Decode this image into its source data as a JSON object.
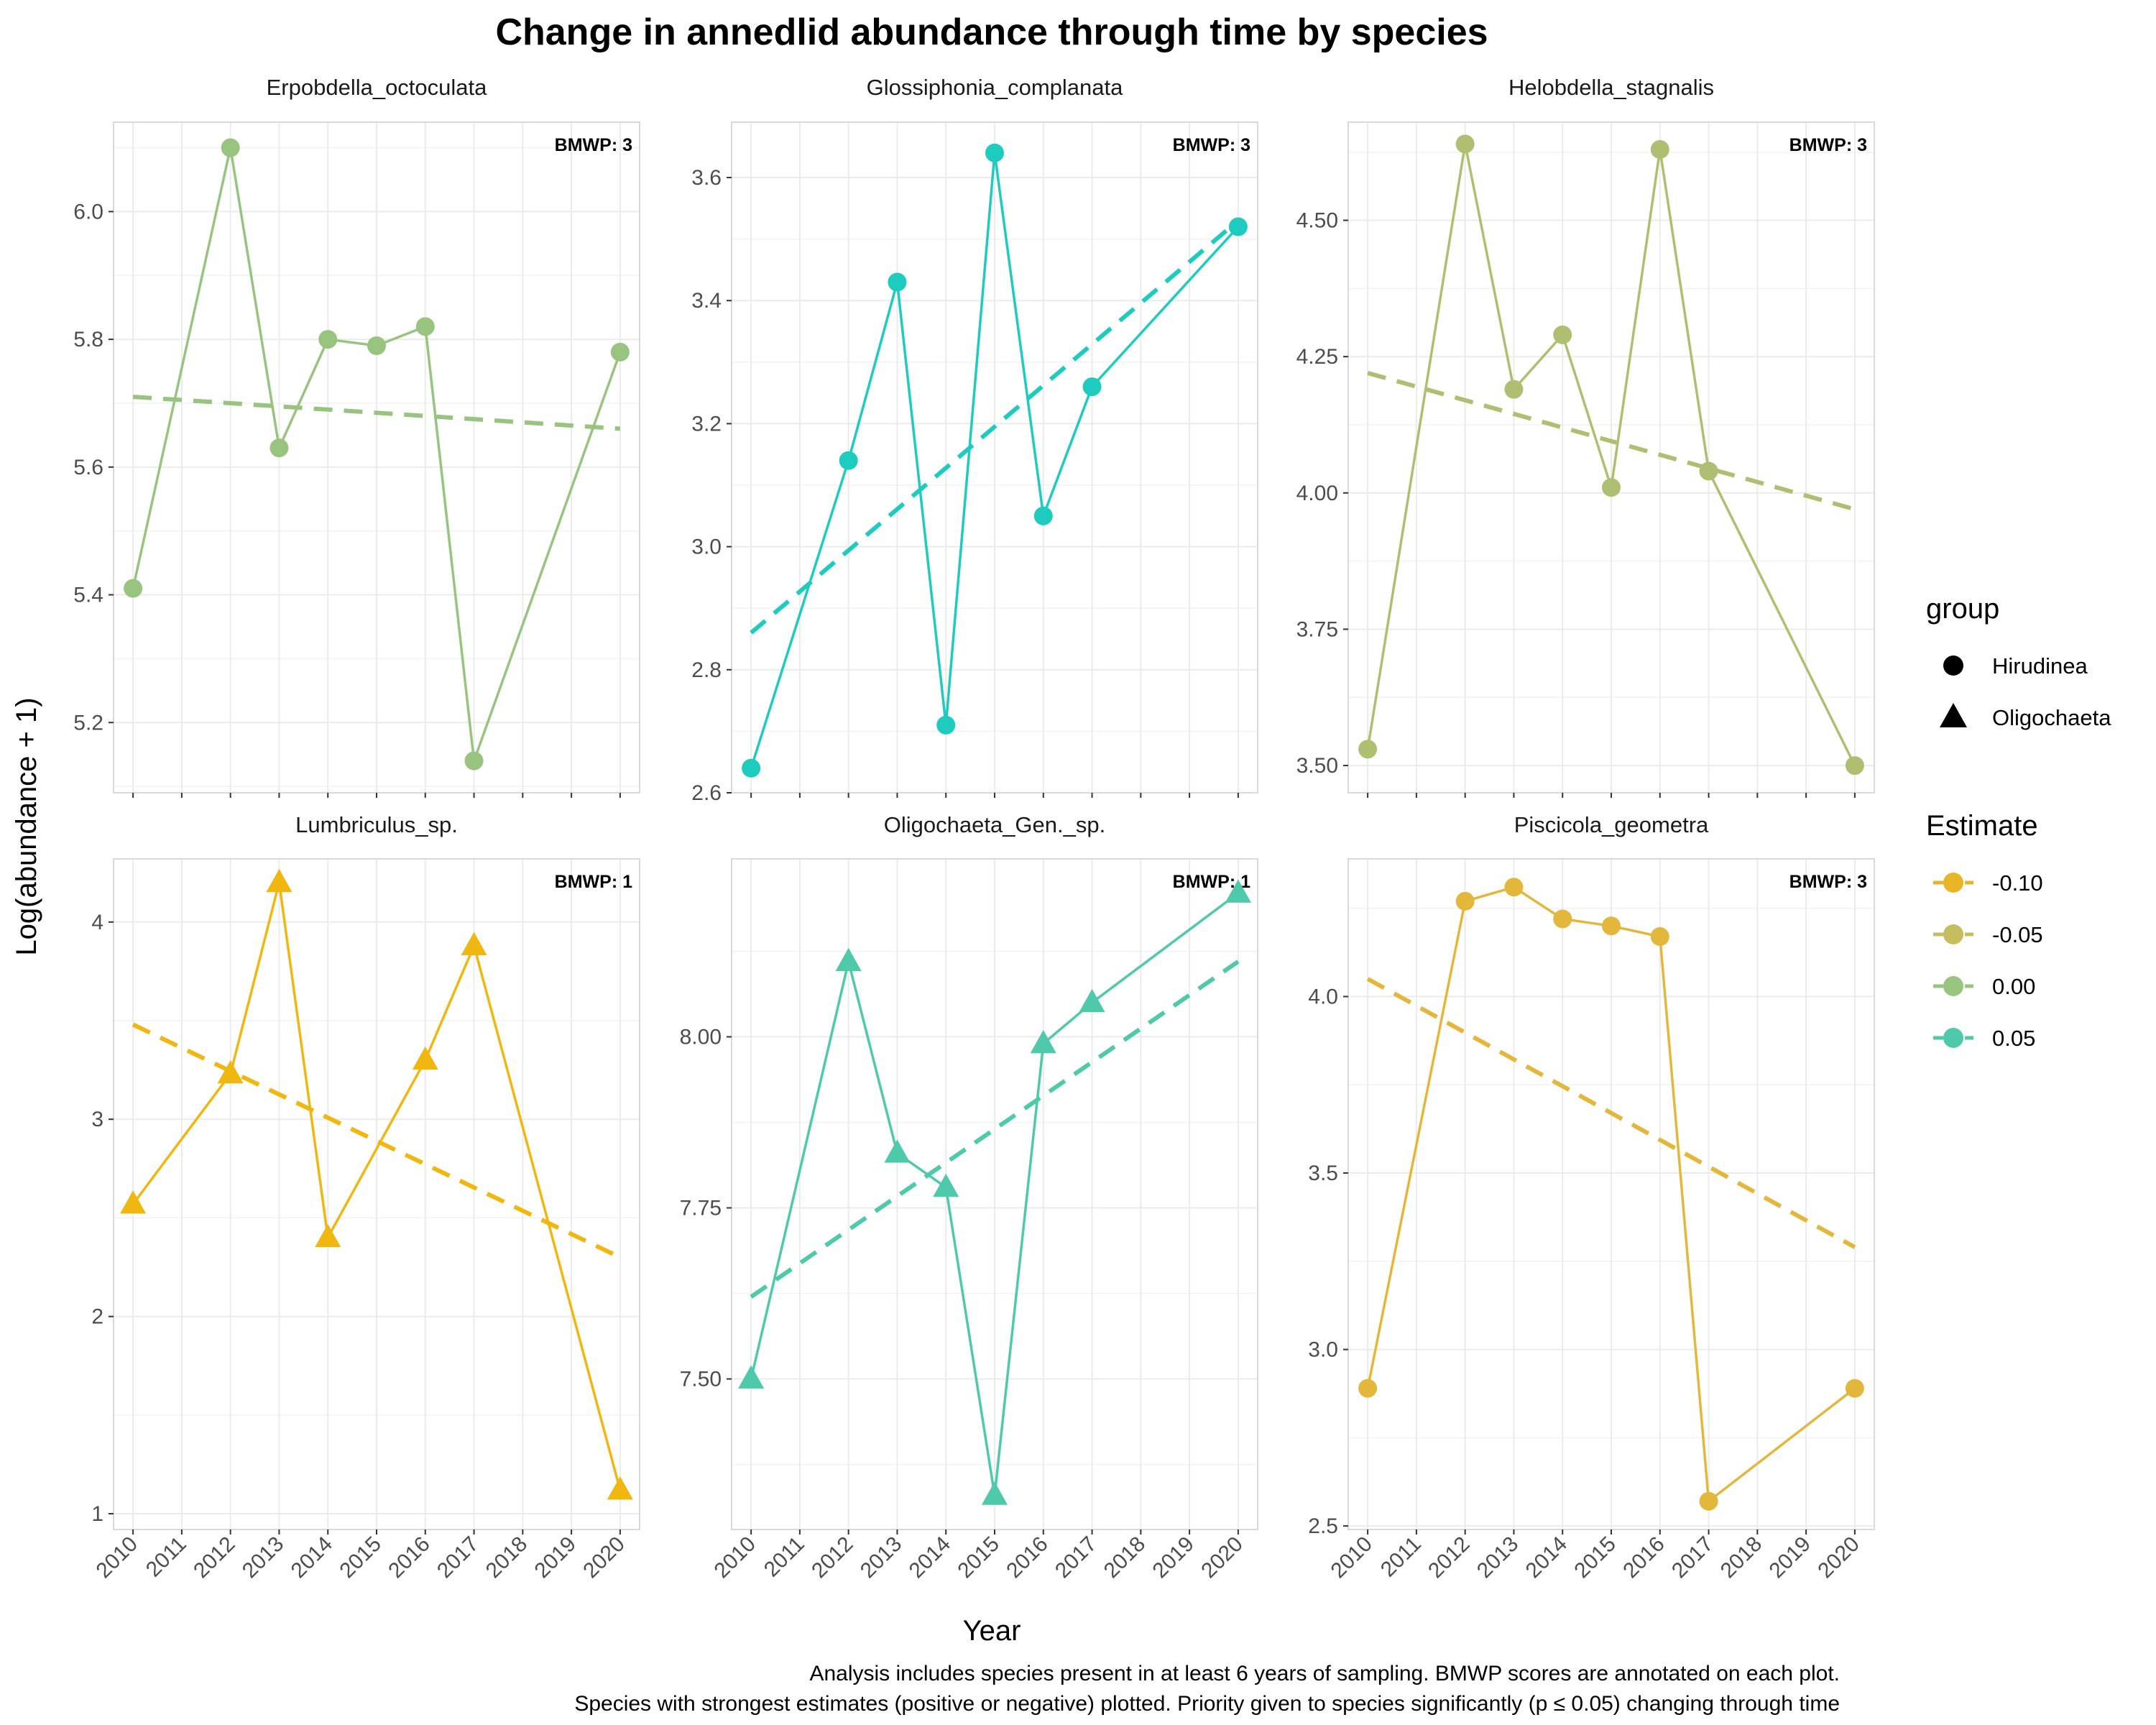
{
  "title": "Change in annedlid abundance through time by species",
  "xlabel": "Year",
  "ylabel": "Log(abundance + 1)",
  "caption": [
    "Analysis includes species present in at least 6 years of sampling. BMWP scores are annotated on each plot.",
    "Species with strongest estimates (positive or negative) plotted. Priority given to species significantly (p ≤ 0.05) changing through time"
  ],
  "legend": {
    "group": {
      "title": "group",
      "items": [
        {
          "label": "Hirudinea",
          "shape": "circle"
        },
        {
          "label": "Oligochaeta",
          "shape": "triangle"
        }
      ]
    },
    "estimate": {
      "title": "Estimate",
      "items": [
        {
          "label": "-0.10",
          "color": "#e7b526"
        },
        {
          "label": "-0.05",
          "color": "#c4be5f"
        },
        {
          "label": "0.00",
          "color": "#98c480"
        },
        {
          "label": "0.05",
          "color": "#4ec9aa"
        }
      ]
    }
  },
  "chart_data": [
    {
      "type": "line",
      "title": "Erpobdella_octoculata",
      "bmwp": "BMWP: 3",
      "group": "Hirudinea",
      "color": "#98c480",
      "x": [
        2010,
        2012,
        2013,
        2014,
        2015,
        2016,
        2017,
        2020
      ],
      "y": [
        5.41,
        6.1,
        5.63,
        5.8,
        5.79,
        5.82,
        5.14,
        5.78
      ],
      "trend": [
        [
          2010,
          5.71
        ],
        [
          2020,
          5.66
        ]
      ],
      "ylim": [
        5.09,
        6.14
      ],
      "yticks": [
        5.2,
        5.4,
        5.6,
        5.8,
        6.0
      ],
      "yticklabels": [
        "5.2",
        "5.4",
        "5.6",
        "5.8",
        "6.0"
      ],
      "xlim": [
        2009.6,
        2020.4
      ],
      "xticks": [
        2010,
        2011,
        2012,
        2013,
        2014,
        2015,
        2016,
        2017,
        2018,
        2019,
        2020
      ],
      "xticklabels_visible": false
    },
    {
      "type": "line",
      "title": "Glossiphonia_complanata",
      "bmwp": "BMWP: 3",
      "group": "Hirudinea",
      "color": "#1ecbbf",
      "x": [
        2010,
        2012,
        2013,
        2014,
        2015,
        2016,
        2017,
        2020
      ],
      "y": [
        2.64,
        3.14,
        3.43,
        2.71,
        3.64,
        3.05,
        3.26,
        3.52
      ],
      "trend": [
        [
          2010,
          2.86
        ],
        [
          2020,
          3.53
        ]
      ],
      "ylim": [
        2.6,
        3.69
      ],
      "yticks": [
        2.6,
        2.8,
        3.0,
        3.2,
        3.4,
        3.6
      ],
      "yticklabels": [
        "2.6",
        "2.8",
        "3.0",
        "3.2",
        "3.4",
        "3.6"
      ],
      "xlim": [
        2009.6,
        2020.4
      ],
      "xticks": [
        2010,
        2011,
        2012,
        2013,
        2014,
        2015,
        2016,
        2017,
        2018,
        2019,
        2020
      ],
      "xticklabels_visible": false
    },
    {
      "type": "line",
      "title": "Helobdella_stagnalis",
      "bmwp": "BMWP: 3",
      "group": "Hirudinea",
      "color": "#afbf72",
      "x": [
        2010,
        2012,
        2013,
        2014,
        2015,
        2016,
        2017,
        2020
      ],
      "y": [
        3.53,
        4.64,
        4.19,
        4.29,
        4.01,
        4.63,
        4.04,
        3.5
      ],
      "trend": [
        [
          2010,
          4.22
        ],
        [
          2020,
          3.97
        ]
      ],
      "ylim": [
        3.45,
        4.68
      ],
      "yticks": [
        3.5,
        3.75,
        4.0,
        4.25,
        4.5
      ],
      "yticklabels": [
        "3.50",
        "3.75",
        "4.00",
        "4.25",
        "4.50"
      ],
      "xlim": [
        2009.6,
        2020.4
      ],
      "xticks": [
        2010,
        2011,
        2012,
        2013,
        2014,
        2015,
        2016,
        2017,
        2018,
        2019,
        2020
      ],
      "xticklabels_visible": false
    },
    {
      "type": "line",
      "title": "Lumbriculus_sp.",
      "bmwp": "BMWP: 1",
      "group": "Oligochaeta",
      "color": "#efb70f",
      "x": [
        2010,
        2012,
        2013,
        2014,
        2016,
        2017,
        2020
      ],
      "y": [
        2.57,
        3.23,
        4.2,
        2.4,
        3.3,
        3.88,
        1.12
      ],
      "trend": [
        [
          2010,
          3.48
        ],
        [
          2020,
          2.3
        ]
      ],
      "ylim": [
        0.92,
        4.32
      ],
      "yticks": [
        1,
        2,
        3,
        4
      ],
      "yticklabels": [
        "1",
        "2",
        "3",
        "4"
      ],
      "xlim": [
        2009.6,
        2020.4
      ],
      "xticks": [
        2010,
        2011,
        2012,
        2013,
        2014,
        2015,
        2016,
        2017,
        2018,
        2019,
        2020
      ],
      "xticklabels_visible": true
    },
    {
      "type": "line",
      "title": "Oligochaeta_Gen._sp.",
      "bmwp": "BMWP: 1",
      "group": "Oligochaeta",
      "color": "#4ec9aa",
      "x": [
        2010,
        2012,
        2013,
        2014,
        2015,
        2016,
        2017,
        2020
      ],
      "y": [
        7.5,
        8.11,
        7.83,
        7.78,
        7.33,
        7.99,
        8.05,
        8.21
      ],
      "trend": [
        [
          2010,
          7.62
        ],
        [
          2020,
          8.11
        ]
      ],
      "ylim": [
        7.28,
        8.26
      ],
      "yticks": [
        7.5,
        7.75,
        8.0
      ],
      "yticklabels": [
        "7.50",
        "7.75",
        "8.00"
      ],
      "xlim": [
        2009.6,
        2020.4
      ],
      "xticks": [
        2010,
        2011,
        2012,
        2013,
        2014,
        2015,
        2016,
        2017,
        2018,
        2019,
        2020
      ],
      "xticklabels_visible": true
    },
    {
      "type": "line",
      "title": "Piscicola_geometra",
      "bmwp": "BMWP: 3",
      "group": "Hirudinea",
      "color": "#e3b73c",
      "x": [
        2010,
        2012,
        2013,
        2014,
        2015,
        2016,
        2017,
        2020
      ],
      "y": [
        2.89,
        4.27,
        4.31,
        4.22,
        4.2,
        4.17,
        2.57,
        2.89
      ],
      "trend": [
        [
          2010,
          4.05
        ],
        [
          2020,
          3.29
        ]
      ],
      "ylim": [
        2.49,
        4.39
      ],
      "yticks": [
        2.5,
        3.0,
        3.5,
        4.0
      ],
      "yticklabels": [
        "2.5",
        "3.0",
        "3.5",
        "4.0"
      ],
      "xlim": [
        2009.6,
        2020.4
      ],
      "xticks": [
        2010,
        2011,
        2012,
        2013,
        2014,
        2015,
        2016,
        2017,
        2018,
        2019,
        2020
      ],
      "xticklabels_visible": true
    }
  ]
}
